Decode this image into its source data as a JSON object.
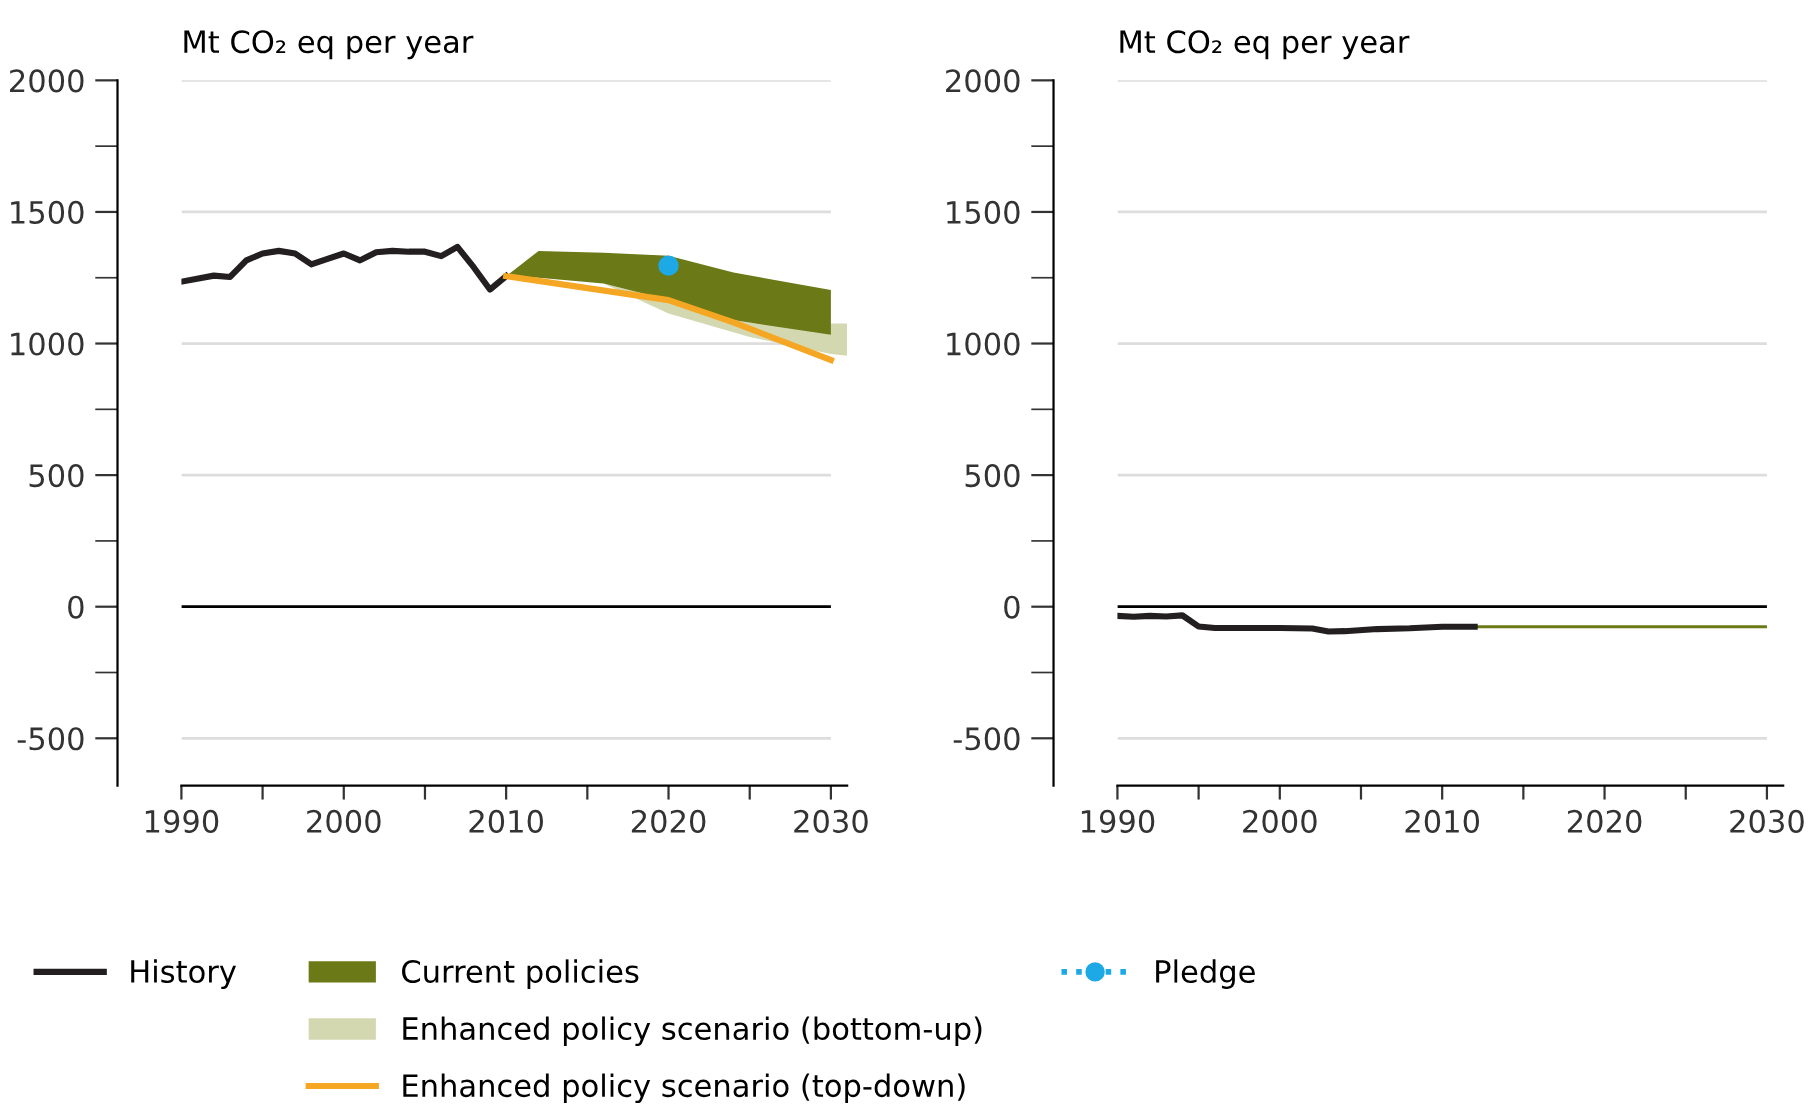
{
  "chart_data": [
    {
      "type": "line",
      "ylabel": "Mt CO₂ eq per year",
      "xlim": [
        1990,
        2031
      ],
      "ylim": [
        -680,
        2000
      ],
      "xticks": [
        1990,
        {
          "value": 1995,
          "label": null
        },
        2000,
        {
          "value": 2005,
          "label": null
        },
        2010,
        {
          "value": 2015,
          "label": null
        },
        2020,
        {
          "value": 2025,
          "label": null
        },
        2030
      ],
      "yticks": [
        -500,
        0,
        500,
        1000,
        1500,
        2000
      ],
      "grid": "y",
      "legend": "bottom",
      "ref_lines": [
        {
          "axis": "y",
          "value": 0,
          "color": "#000000"
        }
      ],
      "series": [
        {
          "name": "History",
          "color": "#231f20",
          "x": [
            1990,
            1992,
            1993,
            1994,
            1995,
            1996,
            1997,
            1998,
            1999,
            2000,
            2001,
            2002,
            2003,
            2004,
            2005,
            2006,
            2007,
            2008,
            2009,
            2010
          ],
          "values": [
            1235,
            1258,
            1253,
            1316,
            1342,
            1352,
            1342,
            1301,
            1322,
            1342,
            1316,
            1347,
            1352,
            1349,
            1349,
            1332,
            1367,
            1290,
            1205,
            1256
          ]
        },
        {
          "name": "Current policies",
          "type": "area",
          "color": "#6b7a17",
          "x": [
            2010,
            2012,
            2016,
            2020,
            2024,
            2030
          ],
          "values": [
            null,
            null,
            null,
            null,
            null,
            null
          ],
          "lower": [
            1256,
            1250,
            1228,
            1165,
            1089,
            1033
          ],
          "upper": [
            1256,
            1352,
            1345,
            1334,
            1270,
            1203
          ]
        },
        {
          "name": "Enhanced policy scenario (bottom-up)",
          "type": "area",
          "color": "#d4d8b0",
          "x": [
            2016,
            2020,
            2025,
            2030,
            2031
          ],
          "values": [
            null,
            null,
            null,
            null,
            null
          ],
          "lower": [
            1228,
            1114,
            1025,
            960,
            954
          ],
          "upper": [
            1228,
            1165,
            1080,
            1076,
            1076
          ]
        },
        {
          "name": "Enhanced policy scenario (top-down)",
          "color": "#f5a623",
          "x": [
            2010,
            2020,
            2024,
            2030
          ],
          "values": [
            1256,
            1165,
            1080,
            937
          ]
        },
        {
          "name": "Pledge",
          "type": "scatter",
          "color": "#1ca9e6",
          "marker": "circle",
          "line_style": "dotted",
          "x": [
            2020
          ],
          "values": [
            1296
          ]
        }
      ]
    },
    {
      "type": "line",
      "ylabel": "Mt CO₂ eq per year",
      "xlim": [
        1990,
        2031
      ],
      "ylim": [
        -680,
        2000
      ],
      "xticks": [
        1990,
        {
          "value": 1995,
          "label": null
        },
        2000,
        {
          "value": 2005,
          "label": null
        },
        2010,
        {
          "value": 2015,
          "label": null
        },
        2020,
        {
          "value": 2025,
          "label": null
        },
        2030
      ],
      "yticks": [
        -500,
        0,
        500,
        1000,
        1500,
        2000
      ],
      "grid": "y",
      "ref_lines": [
        {
          "axis": "y",
          "value": 0,
          "color": "#000000"
        }
      ],
      "series": [
        {
          "color": "#231f20",
          "x": [
            1990,
            1991,
            1992,
            1993,
            1994,
            1995,
            1996,
            2000,
            2002,
            2003,
            2004,
            2006,
            2008,
            2010,
            2012
          ],
          "values": [
            -35,
            -38,
            -35,
            -37,
            -33,
            -75,
            -81,
            -81,
            -83,
            -94,
            -93,
            -85,
            -82,
            -76,
            -76
          ]
        },
        {
          "type": "area",
          "color": "#6b7a17",
          "x": [
            2012,
            2030
          ],
          "values": [
            null,
            null
          ],
          "lower": [
            -82,
            -82
          ],
          "upper": [
            -70,
            -70
          ]
        }
      ]
    }
  ]
}
